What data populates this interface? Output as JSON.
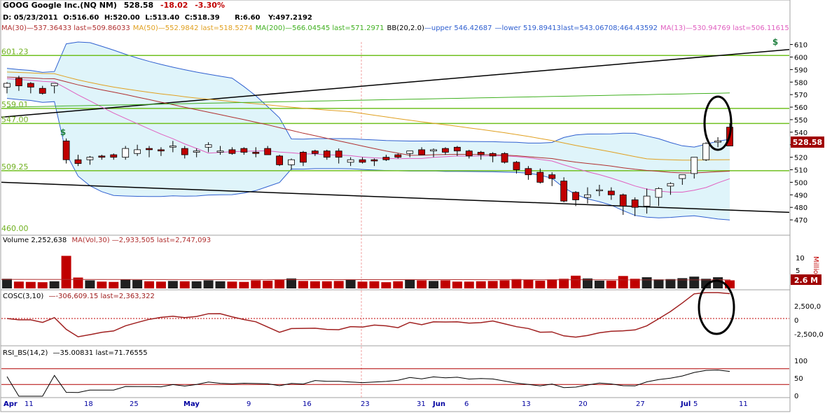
{
  "header": {
    "symbol_title": "GOOG Google Inc.(NQ NM)",
    "last": "528.58",
    "change": "-18.02",
    "change_pct": "-3.30%",
    "ohlc_line": {
      "date_label": "D: 05/23/2011",
      "open_label": "O:516.60",
      "high_label": "H:520.00",
      "low_label": "L:513.40",
      "close_label": "C:518.39",
      "range_label": "R:6.60",
      "y_label": "Y:497.2192"
    },
    "indicator_legend": [
      {
        "text": "MA(30)",
        "color": "#b03030"
      },
      {
        "text": "—537.36433 last=509.86033",
        "color": "#b03030"
      },
      {
        "text": "MA(50)",
        "color": "#e0a020"
      },
      {
        "text": "—552.9842 last=518.5274",
        "color": "#e0a020"
      },
      {
        "text": "MA(200)",
        "color": "#40b020"
      },
      {
        "text": "—566.04545 last=571.2971",
        "color": "#40b020"
      },
      {
        "text": "BB(20,2.0)",
        "color": "#000000"
      },
      {
        "text": "—upper 546.42687",
        "color": "#3060d0"
      },
      {
        "text": "—lower 519.89413",
        "color": "#3060d0"
      },
      {
        "text": "last=543.06708;464.43592",
        "color": "#3060d0"
      },
      {
        "text": "MA(13)",
        "color": "#e060c0"
      },
      {
        "text": "—530.94769 last=506.11615",
        "color": "#e060c0"
      }
    ]
  },
  "price_panel": {
    "hline_labels": [
      "601.23",
      "559.01",
      "547.00",
      "509.25",
      "460.00"
    ],
    "current_price_tag": "528.58",
    "dollar_glyph": "$",
    "y_ticks": [
      "610",
      "600",
      "590",
      "580",
      "570",
      "560",
      "550",
      "540",
      "530",
      "520",
      "510",
      "500",
      "490",
      "480",
      "470"
    ]
  },
  "volume_panel": {
    "legend": "Volume 2,252,638",
    "ma_legend": "MA(Vol,30)",
    "ma_value": "—2,933,505 last=2,747,093",
    "y_ticks": [
      "10",
      "5"
    ],
    "unit": "Millions",
    "current_tag": "2.6 M"
  },
  "cosc_panel": {
    "legend": "COSC(3,10)",
    "value": "—-306,609.15 last=2,363,322",
    "y_ticks": [
      "2,500,0",
      "0",
      "-2,500,0"
    ]
  },
  "rsi_panel": {
    "legend": "RSI_BS(14,2)",
    "value": "—35.00831 last=71.76555",
    "y_ticks": [
      "100",
      "50",
      "0"
    ]
  },
  "x_axis": {
    "labels": [
      {
        "text": "Apr",
        "bold": true
      },
      {
        "text": "11",
        "bold": false
      },
      {
        "text": "18",
        "bold": false
      },
      {
        "text": "25",
        "bold": false
      },
      {
        "text": "May",
        "bold": true
      },
      {
        "text": "9",
        "bold": false
      },
      {
        "text": "16",
        "bold": false
      },
      {
        "text": "23",
        "bold": false
      },
      {
        "text": "31",
        "bold": false
      },
      {
        "text": "Jun",
        "bold": true
      },
      {
        "text": "6",
        "bold": false
      },
      {
        "text": "13",
        "bold": false
      },
      {
        "text": "20",
        "bold": false
      },
      {
        "text": "27",
        "bold": false
      },
      {
        "text": "Jul",
        "bold": true
      },
      {
        "text": "5",
        "bold": false
      },
      {
        "text": "11",
        "bold": false
      }
    ]
  },
  "chart_data": {
    "type": "candlestick",
    "colors": {
      "up": "#ffffff",
      "down": "#c00000",
      "volume_up": "#202020",
      "volume_down": "#c00000",
      "bb_fill": "#dff4fa",
      "bb_line": "#3060d0",
      "ma30": "#b03030",
      "ma50": "#e0a020",
      "ma200": "#40b020",
      "ma13": "#e060c0",
      "hline": "#70c020",
      "trendline": "#000000",
      "cosc": "#a02020",
      "rsi": "#000000",
      "rsi_band": "#b00000"
    },
    "dates": [
      "2011-04-11",
      "2011-04-12",
      "2011-04-13",
      "2011-04-14",
      "2011-04-15",
      "2011-04-18",
      "2011-04-19",
      "2011-04-20",
      "2011-04-21",
      "2011-04-25",
      "2011-04-26",
      "2011-04-27",
      "2011-04-28",
      "2011-04-29",
      "2011-05-02",
      "2011-05-03",
      "2011-05-04",
      "2011-05-05",
      "2011-05-06",
      "2011-05-09",
      "2011-05-10",
      "2011-05-11",
      "2011-05-12",
      "2011-05-13",
      "2011-05-16",
      "2011-05-17",
      "2011-05-18",
      "2011-05-19",
      "2011-05-20",
      "2011-05-23",
      "2011-05-24",
      "2011-05-25",
      "2011-05-26",
      "2011-05-27",
      "2011-05-31",
      "2011-06-01",
      "2011-06-02",
      "2011-06-03",
      "2011-06-06",
      "2011-06-07",
      "2011-06-08",
      "2011-06-09",
      "2011-06-10",
      "2011-06-13",
      "2011-06-14",
      "2011-06-15",
      "2011-06-16",
      "2011-06-17",
      "2011-06-20",
      "2011-06-21",
      "2011-06-22",
      "2011-06-23",
      "2011-06-24",
      "2011-06-27",
      "2011-06-28",
      "2011-06-29",
      "2011-06-30",
      "2011-07-01",
      "2011-07-05",
      "2011-07-06",
      "2011-07-07",
      "2011-07-08"
    ],
    "open": [
      576,
      583,
      579,
      575,
      577,
      533,
      518,
      518,
      521,
      522,
      520,
      523,
      527,
      526,
      528,
      527,
      524,
      528,
      524,
      526,
      527,
      524,
      527,
      521,
      514,
      524,
      525,
      525,
      525,
      516,
      518,
      518,
      520,
      522,
      523,
      526,
      525,
      527,
      528,
      525,
      524,
      523,
      523,
      516,
      511,
      508,
      506,
      501,
      492,
      488,
      494,
      493,
      490,
      486,
      481,
      488,
      497,
      503,
      507,
      518,
      532,
      544
    ],
    "high": [
      580,
      585,
      580,
      577,
      578,
      535,
      522,
      521,
      522,
      523,
      529,
      530,
      529,
      528,
      533,
      529,
      527,
      532,
      529,
      528,
      528,
      528,
      529,
      522,
      519,
      525,
      526,
      526,
      527,
      520,
      520,
      519,
      522,
      523,
      525,
      528,
      527,
      528,
      529,
      526,
      525,
      524,
      524,
      517,
      513,
      511,
      508,
      504,
      493,
      496,
      498,
      496,
      491,
      488,
      495,
      496,
      500,
      506,
      520,
      532,
      536,
      547
    ],
    "low": [
      571,
      573,
      571,
      570,
      571,
      515,
      513,
      514,
      518,
      518,
      518,
      521,
      520,
      521,
      524,
      519,
      520,
      524,
      522,
      522,
      522,
      520,
      522,
      513,
      510,
      513,
      521,
      518,
      515,
      513,
      515,
      513,
      517,
      519,
      520,
      522,
      520,
      522,
      521,
      519,
      518,
      516,
      515,
      507,
      502,
      499,
      497,
      484,
      481,
      483,
      489,
      486,
      474,
      473,
      475,
      481,
      490,
      498,
      503,
      517,
      528,
      530
    ],
    "close": [
      579,
      577,
      576,
      571,
      579,
      518,
      515,
      520,
      520,
      520,
      527,
      526,
      526,
      525,
      529,
      522,
      525,
      530,
      525,
      523,
      524,
      523,
      522,
      514,
      518,
      516,
      523,
      520,
      520,
      518,
      516,
      517,
      518,
      520,
      525,
      522,
      526,
      524,
      525,
      521,
      522,
      521,
      516,
      510,
      506,
      500,
      503,
      485,
      486,
      490,
      494,
      490,
      481,
      480,
      489,
      495,
      499,
      506,
      520,
      531,
      533,
      529
    ],
    "volume": [
      3.1,
      2.2,
      2.1,
      2.0,
      2.3,
      10.5,
      3.5,
      2.6,
      2.2,
      2.1,
      2.9,
      2.7,
      2.3,
      2.2,
      2.4,
      2.3,
      2.3,
      2.6,
      2.3,
      2.2,
      2.1,
      2.6,
      2.5,
      2.7,
      3.2,
      2.4,
      2.3,
      2.3,
      2.4,
      2.7,
      2.2,
      2.3,
      2.0,
      2.3,
      2.8,
      2.6,
      2.4,
      2.6,
      2.2,
      2.2,
      2.3,
      2.4,
      2.6,
      3.0,
      2.7,
      2.5,
      2.9,
      3.1,
      4.1,
      3.2,
      2.5,
      2.5,
      4.0,
      3.1,
      3.6,
      2.9,
      3.0,
      3.3,
      3.8,
      3.1,
      3.6,
      2.6
    ],
    "ma30_last": 509.86,
    "ma50_last": 518.53,
    "ma200_last": 571.3,
    "ma13_last": 506.12,
    "bb_upper_last": 543.07,
    "bb_lower_last": 464.44,
    "horizontal_lines": [
      601.23,
      559.01,
      547.0,
      509.25
    ],
    "price_ylim": [
      460,
      612
    ],
    "volume_ylim": [
      0,
      14
    ],
    "cosc_ylim": [
      -4000000,
      4000000
    ],
    "rsi_ylim": [
      0,
      100
    ],
    "rsi_bands": [
      70,
      30
    ]
  }
}
